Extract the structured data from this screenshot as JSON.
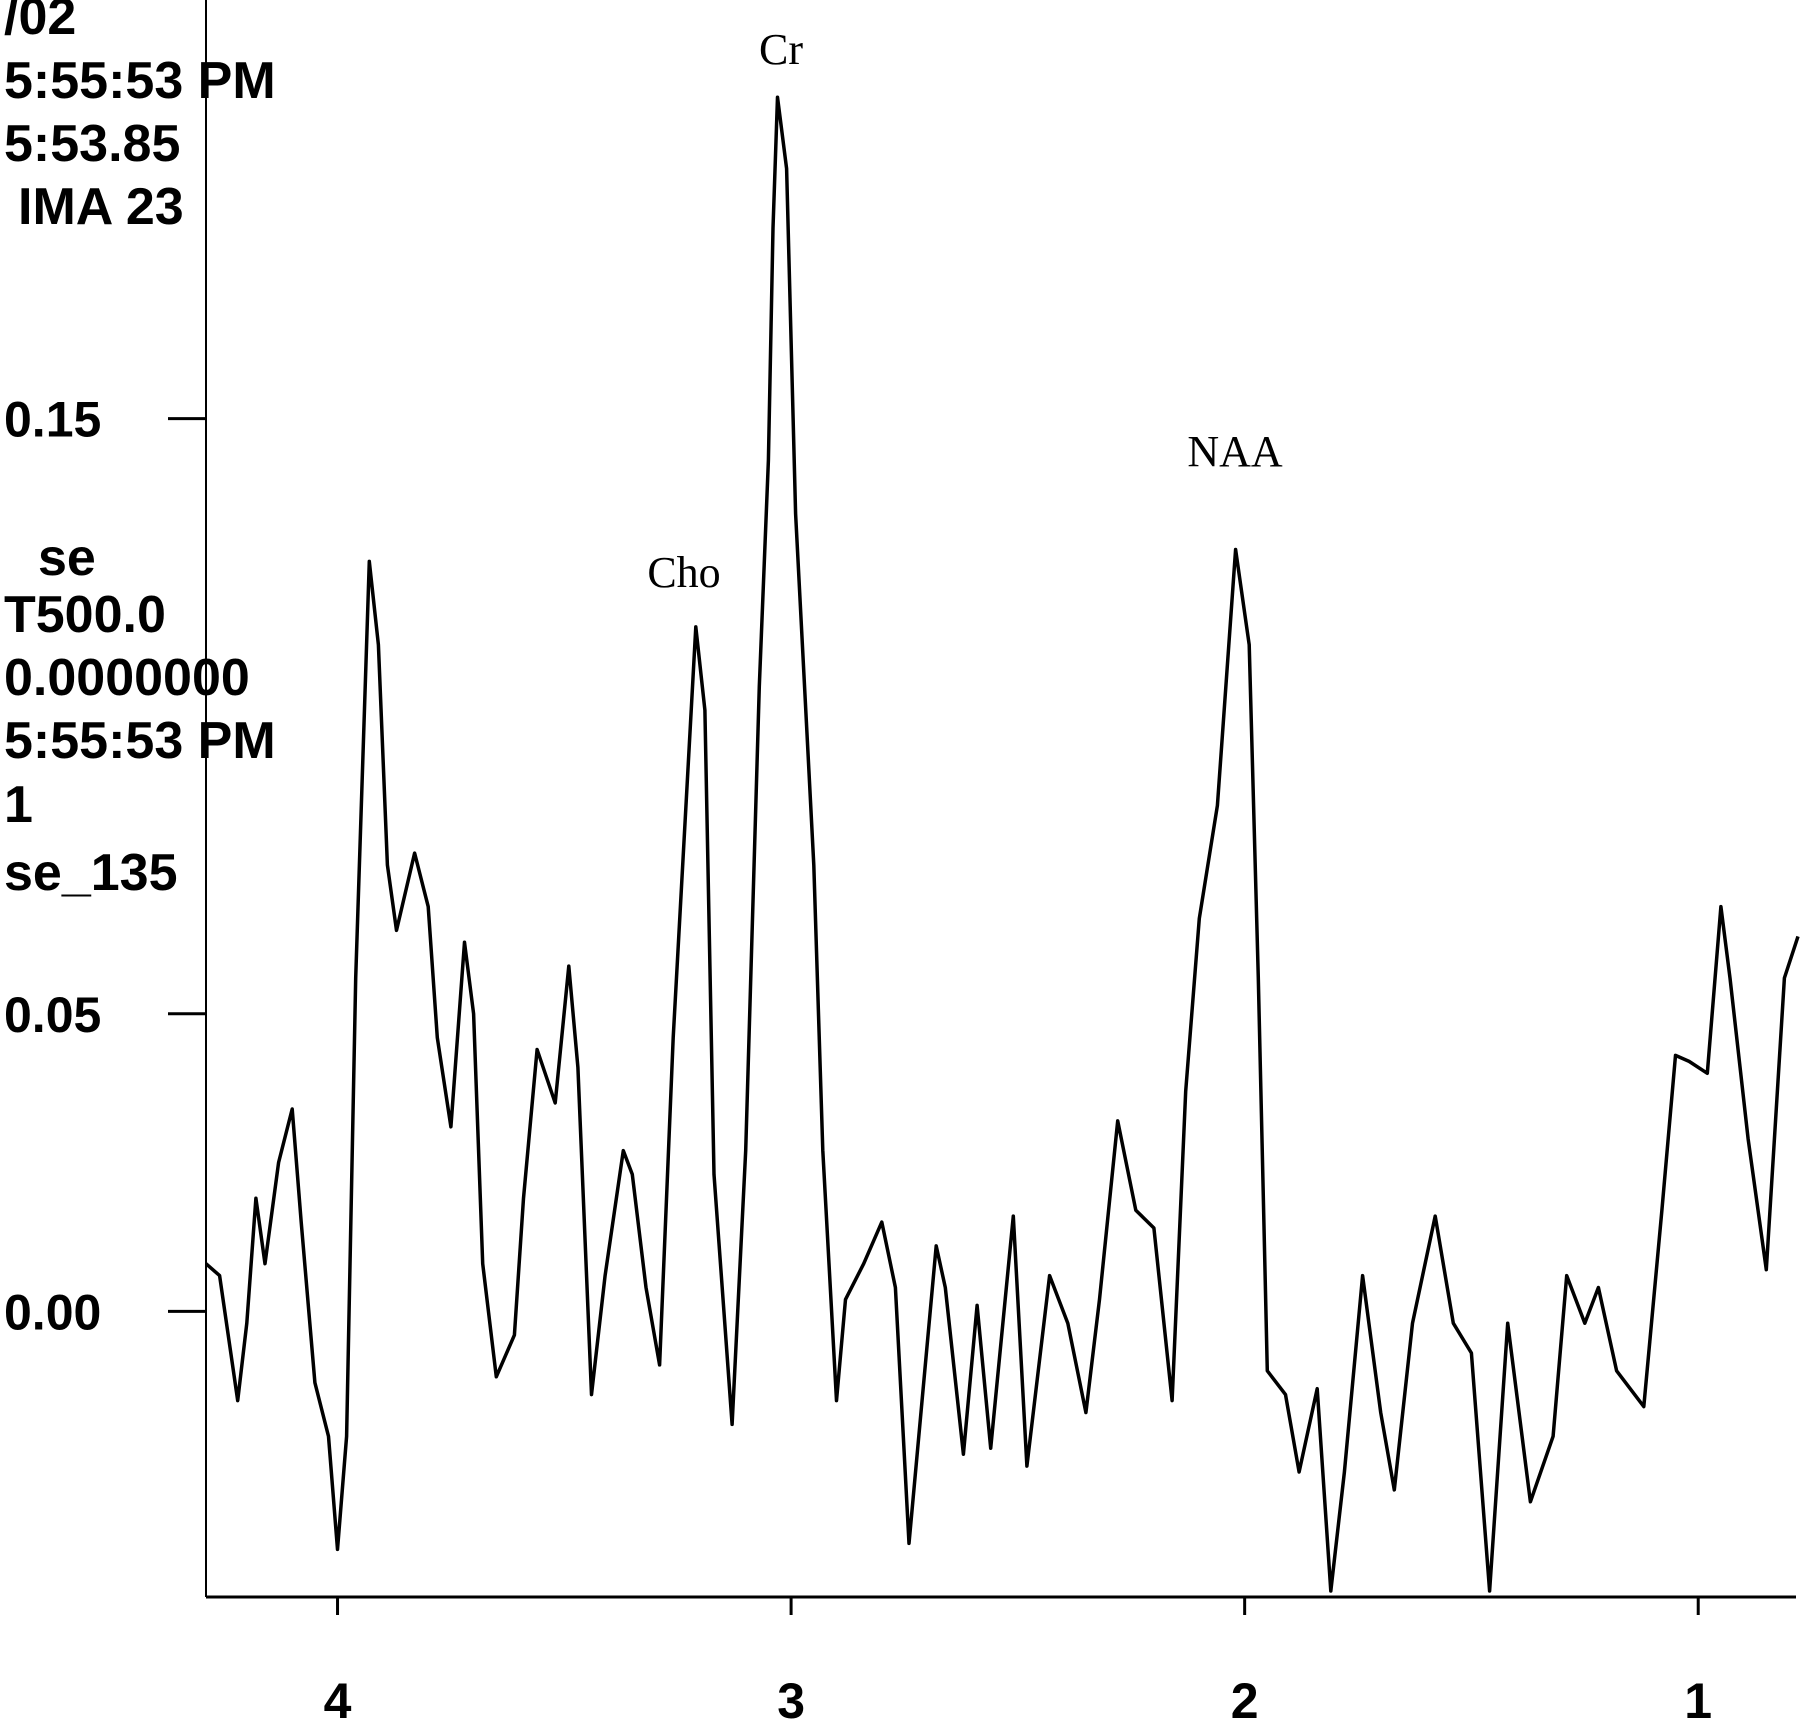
{
  "chart_data": {
    "type": "line",
    "annotations": [
      "/02",
      "5:55:53 PM",
      "5:53.85",
      "IMA 23",
      "se",
      "T500.0",
      "0.0000000",
      "5:55:53 PM",
      "1",
      "se_135"
    ],
    "peak_labels": {
      "Cr": "Cr",
      "Cho": "Cho",
      "NAA": "NAA"
    },
    "color": "#000000",
    "x": [
      4.29,
      4.26,
      4.22,
      4.2,
      4.18,
      4.16,
      4.13,
      4.1,
      4.08,
      4.05,
      4.02,
      4.0,
      3.98,
      3.96,
      3.93,
      3.91,
      3.89,
      3.87,
      3.83,
      3.8,
      3.78,
      3.75,
      3.72,
      3.7,
      3.68,
      3.65,
      3.61,
      3.59,
      3.56,
      3.52,
      3.49,
      3.47,
      3.44,
      3.41,
      3.37,
      3.35,
      3.32,
      3.29,
      3.26,
      3.21,
      3.19,
      3.17,
      3.13,
      3.1,
      3.07,
      3.05,
      3.04,
      3.03,
      3.01,
      2.99,
      2.95,
      2.93,
      2.9,
      2.88,
      2.84,
      2.8,
      2.77,
      2.74,
      2.68,
      2.66,
      2.62,
      2.59,
      2.56,
      2.51,
      2.48,
      2.43,
      2.39,
      2.35,
      2.32,
      2.28,
      2.24,
      2.2,
      2.16,
      2.13,
      2.1,
      2.06,
      2.02,
      1.99,
      1.97,
      1.95,
      1.91,
      1.88,
      1.84,
      1.81,
      1.78,
      1.74,
      1.7,
      1.67,
      1.63,
      1.58,
      1.54,
      1.5,
      1.46,
      1.42,
      1.37,
      1.32,
      1.29,
      1.25,
      1.22,
      1.18,
      1.12,
      1.08,
      1.05,
      1.02,
      0.98,
      0.95,
      0.93,
      0.89,
      0.85,
      0.81,
      0.78
    ],
    "values": [
      0.008,
      0.006,
      -0.015,
      -0.002,
      0.019,
      0.008,
      0.025,
      0.034,
      0.015,
      -0.012,
      -0.021,
      -0.04,
      -0.021,
      0.056,
      0.126,
      0.112,
      0.075,
      0.064,
      0.077,
      0.068,
      0.046,
      0.031,
      0.062,
      0.05,
      0.008,
      -0.011,
      -0.004,
      0.019,
      0.044,
      0.035,
      0.058,
      0.041,
      -0.014,
      0.006,
      0.027,
      0.023,
      0.004,
      -0.009,
      0.046,
      0.115,
      0.101,
      0.023,
      -0.019,
      0.027,
      0.105,
      0.143,
      0.182,
      0.204,
      0.192,
      0.134,
      0.075,
      0.027,
      -0.015,
      0.002,
      0.008,
      0.015,
      0.004,
      -0.039,
      0.011,
      0.004,
      -0.024,
      0.001,
      -0.023,
      0.016,
      -0.026,
      0.006,
      -0.002,
      -0.017,
      0.002,
      0.032,
      0.017,
      0.014,
      -0.015,
      0.037,
      0.066,
      0.085,
      0.128,
      0.112,
      0.056,
      -0.01,
      -0.014,
      -0.027,
      -0.013,
      -0.047,
      -0.027,
      0.006,
      -0.017,
      -0.03,
      -0.002,
      0.016,
      -0.002,
      -0.007,
      -0.047,
      -0.002,
      -0.032,
      -0.021,
      0.006,
      -0.002,
      0.004,
      -0.01,
      -0.016,
      0.017,
      0.043,
      0.042,
      0.04,
      0.068,
      0.056,
      0.029,
      0.007,
      0.056,
      0.063
    ],
    "xlim": [
      4.29,
      0.78
    ],
    "xticks": [
      4,
      3,
      2,
      1
    ],
    "ylim": [
      -0.048,
      0.22
    ],
    "yticks": [
      {
        "value": 0,
        "label": "0.00"
      },
      0.05,
      0.15
    ]
  }
}
